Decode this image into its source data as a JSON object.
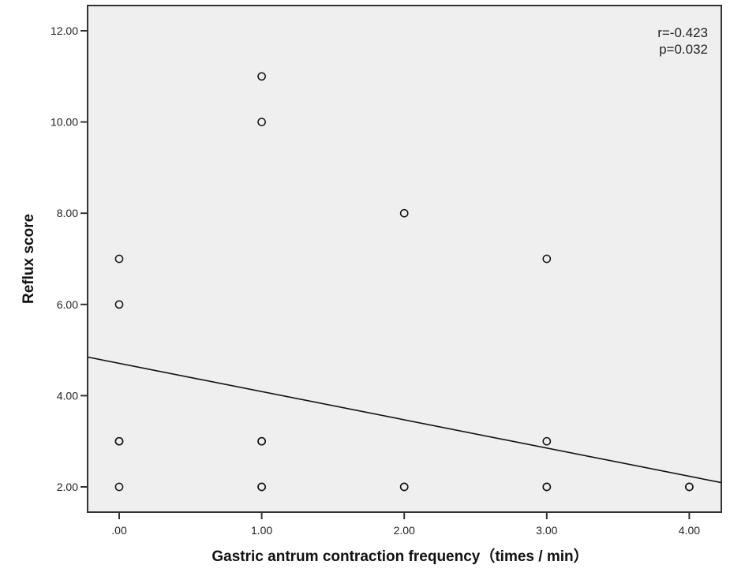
{
  "chart_data": {
    "type": "scatter",
    "title": "",
    "xlabel": "Gastric antrum contraction frequency（times / min）",
    "ylabel": "Reflux score",
    "xlim": [
      -0.22,
      4.22
    ],
    "ylim": [
      1.3,
      12.5
    ],
    "x_ticks": [
      0,
      1,
      2,
      3,
      4
    ],
    "x_tick_labels": [
      ".00",
      "1.00",
      "2.00",
      "3.00",
      "4.00"
    ],
    "y_ticks": [
      2,
      4,
      6,
      8,
      10,
      12
    ],
    "y_tick_labels": [
      "2.00",
      "4.00",
      "6.00",
      "8.00",
      "10.00",
      "12.00"
    ],
    "grid": false,
    "legend": null,
    "points": [
      {
        "x": 0,
        "y": 7
      },
      {
        "x": 0,
        "y": 6
      },
      {
        "x": 0,
        "y": 3
      },
      {
        "x": 0,
        "y": 3
      },
      {
        "x": 0,
        "y": 2
      },
      {
        "x": 1,
        "y": 11
      },
      {
        "x": 1,
        "y": 10
      },
      {
        "x": 1,
        "y": 3
      },
      {
        "x": 1,
        "y": 3
      },
      {
        "x": 1,
        "y": 2
      },
      {
        "x": 1,
        "y": 2
      },
      {
        "x": 2,
        "y": 8
      },
      {
        "x": 2,
        "y": 2
      },
      {
        "x": 2,
        "y": 2
      },
      {
        "x": 3,
        "y": 7
      },
      {
        "x": 3,
        "y": 3
      },
      {
        "x": 3,
        "y": 2
      },
      {
        "x": 3,
        "y": 2
      },
      {
        "x": 4,
        "y": 2
      },
      {
        "x": 4,
        "y": 2
      }
    ],
    "fit_line": {
      "type": "linear",
      "intercept": 4.71,
      "slope": -0.62
    },
    "annotations": [
      "r=-0.423",
      "p=0.032"
    ]
  },
  "colors": {
    "plot_background": "#efefef",
    "page_background": "#ffffff",
    "axis": "#333333",
    "marker": "#111111",
    "line": "#111111"
  }
}
